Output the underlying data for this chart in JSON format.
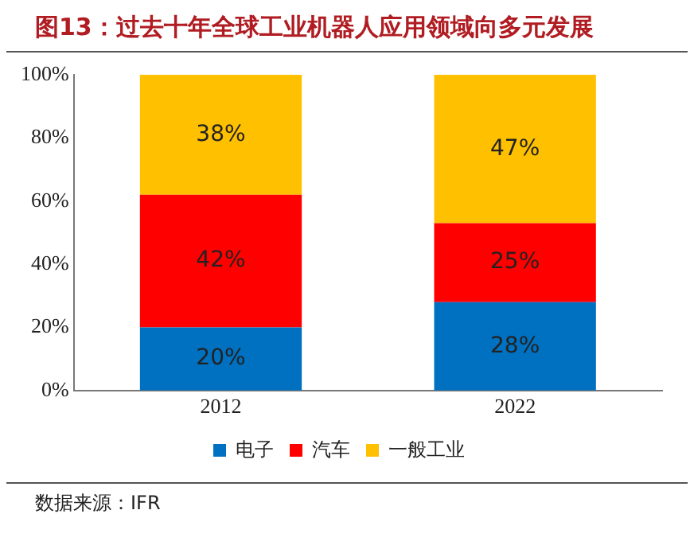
{
  "chart_data": {
    "type": "bar",
    "stacked": true,
    "title": "图13：过去十年全球工业机器人应用领域向多元发展",
    "categories": [
      "2012",
      "2022"
    ],
    "series": [
      {
        "name": "电子",
        "color": "#0070c0",
        "values": [
          20,
          28
        ],
        "value_labels": [
          "20%",
          "28%"
        ]
      },
      {
        "name": "汽车",
        "color": "#ff0000",
        "values": [
          42,
          25
        ],
        "value_labels": [
          "42%",
          "25%"
        ]
      },
      {
        "name": "一般工业",
        "color": "#ffc000",
        "values": [
          38,
          47
        ],
        "value_labels": [
          "38%",
          "47%"
        ]
      }
    ],
    "ylim": [
      0,
      100
    ],
    "yticks": [
      {
        "value": 0,
        "label": "0%"
      },
      {
        "value": 20,
        "label": "20%"
      },
      {
        "value": 40,
        "label": "40%"
      },
      {
        "value": 60,
        "label": "60%"
      },
      {
        "value": 80,
        "label": "80%"
      },
      {
        "value": 100,
        "label": "100%"
      }
    ],
    "grid": false,
    "legend": "bottom",
    "annotations": [
      "数据来源：IFR"
    ]
  }
}
